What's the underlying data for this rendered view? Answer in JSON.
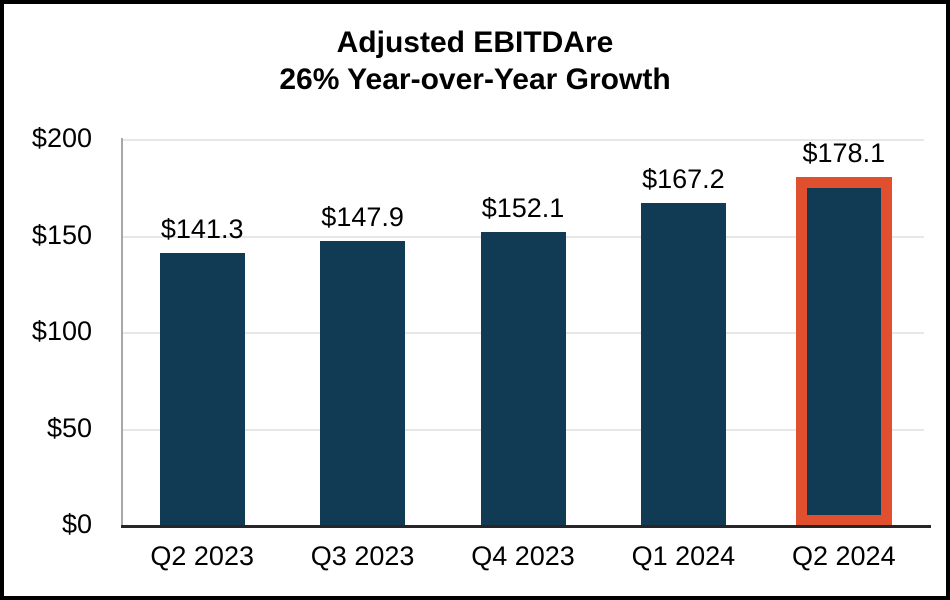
{
  "title": {
    "line1": "Adjusted EBITDAre",
    "line2": "26% Year-over-Year Growth"
  },
  "chart_data": {
    "type": "bar",
    "title": "Adjusted EBITDAre",
    "subtitle": "26% Year-over-Year Growth",
    "categories": [
      "Q2 2023",
      "Q3 2023",
      "Q4 2023",
      "Q1 2024",
      "Q2 2024"
    ],
    "values": [
      141.3,
      147.9,
      152.1,
      167.2,
      178.1
    ],
    "value_labels": [
      "$141.3",
      "$147.9",
      "$152.1",
      "$167.2",
      "$178.1"
    ],
    "highlighted_index": 4,
    "y_ticks": [
      {
        "label": "$0",
        "value": 0
      },
      {
        "label": "$50",
        "value": 50
      },
      {
        "label": "$100",
        "value": 100
      },
      {
        "label": "$150",
        "value": 150
      },
      {
        "label": "$200",
        "value": 200
      }
    ],
    "ylim": [
      0,
      200
    ],
    "xlabel": "",
    "ylabel": "",
    "grid": "horizontal",
    "legend": "none",
    "colors": {
      "bar": "#113A54",
      "highlight_border": "#E0502F",
      "gridline": "#E7E7E7",
      "y_axis_line": "#A8A8A8",
      "x_axis_line": "#262626",
      "text": "#000000",
      "frame_border": "#000000",
      "background": "#FFFFFF"
    }
  }
}
